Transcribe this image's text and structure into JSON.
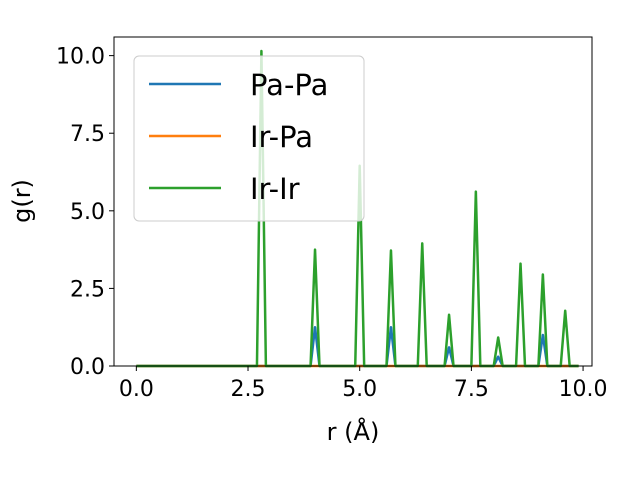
{
  "chart_data": {
    "type": "line",
    "xlabel": "r (Å)",
    "ylabel": "g(r)",
    "xlim": [
      -0.5,
      10.2
    ],
    "ylim": [
      0,
      10.6
    ],
    "xticks": [
      0.0,
      2.5,
      5.0,
      7.5,
      10.0
    ],
    "xtick_labels": [
      "0.0",
      "2.5",
      "5.0",
      "7.5",
      "10.0"
    ],
    "yticks": [
      0.0,
      2.5,
      5.0,
      7.5,
      10.0
    ],
    "ytick_labels": [
      "0.0",
      "2.5",
      "5.0",
      "7.5",
      "10.0"
    ],
    "grid": false,
    "legend_position": "upper-left",
    "series": [
      {
        "name": "Pa-Pa",
        "color": "#1f77b4",
        "x": [
          0.0,
          3.9,
          4.0,
          4.1,
          5.6,
          5.7,
          5.8,
          6.9,
          7.0,
          7.1,
          8.0,
          8.1,
          8.2,
          9.0,
          9.1,
          9.2,
          9.9
        ],
        "y": [
          0.0,
          0.0,
          1.25,
          0.0,
          0.0,
          1.25,
          0.0,
          0.0,
          0.6,
          0.0,
          0.0,
          0.3,
          0.0,
          0.0,
          1.0,
          0.0,
          0.0
        ]
      },
      {
        "name": "Ir-Pa",
        "color": "#ff7f0e",
        "x": [
          0.0,
          9.9
        ],
        "y": [
          0.0,
          0.0
        ]
      },
      {
        "name": "Ir-Ir",
        "color": "#2ca02c",
        "x": [
          0.0,
          2.7,
          2.8,
          2.9,
          3.9,
          4.0,
          4.1,
          4.9,
          5.0,
          5.1,
          5.6,
          5.7,
          5.8,
          6.3,
          6.4,
          6.5,
          6.9,
          7.0,
          7.1,
          7.5,
          7.6,
          7.7,
          8.0,
          8.1,
          8.2,
          8.5,
          8.6,
          8.7,
          9.0,
          9.1,
          9.2,
          9.5,
          9.6,
          9.7,
          9.9
        ],
        "y": [
          0.0,
          0.0,
          10.15,
          0.0,
          0.0,
          3.75,
          0.0,
          0.0,
          6.45,
          0.0,
          0.0,
          3.72,
          0.0,
          0.0,
          3.95,
          0.0,
          0.0,
          1.65,
          0.0,
          0.0,
          5.62,
          0.0,
          0.0,
          0.92,
          0.0,
          0.0,
          3.3,
          0.0,
          0.0,
          2.95,
          0.0,
          0.0,
          1.78,
          0.0,
          0.0
        ]
      }
    ]
  }
}
